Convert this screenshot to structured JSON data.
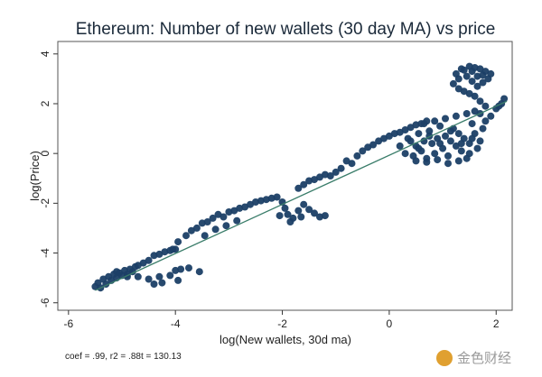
{
  "chart_data": {
    "type": "scatter",
    "title": "Ethereum: Number of new wallets (30 day MA) vs price",
    "xlabel": "log(New wallets, 30d ma)",
    "ylabel": "log(Price)",
    "xlim": [
      -6.2,
      2.3
    ],
    "ylim": [
      -6.3,
      4.5
    ],
    "xticks": [
      -6,
      -4,
      -2,
      0,
      2
    ],
    "yticks": [
      -6,
      -4,
      -2,
      0,
      2,
      4
    ],
    "xtick_labels": [
      "-6",
      "-4",
      "-2",
      "0",
      "2"
    ],
    "ytick_labels": [
      "-6",
      "-4",
      "-2",
      "0",
      "2",
      "4"
    ],
    "grid": false,
    "legend": "none",
    "point_color": "#1b3f66",
    "fit_line_color": "#3a7d6a",
    "fit_line": {
      "x": [
        -5.5,
        2.2
      ],
      "y": [
        -5.5,
        2.1
      ]
    },
    "annotation": "coef = .99, r2 = .88t = 130.13",
    "points": [
      [
        -5.5,
        -5.35
      ],
      [
        -5.45,
        -5.2
      ],
      [
        -5.4,
        -5.4
      ],
      [
        -5.35,
        -5.05
      ],
      [
        -5.3,
        -5.25
      ],
      [
        -5.25,
        -4.95
      ],
      [
        -5.2,
        -5.1
      ],
      [
        -5.15,
        -4.85
      ],
      [
        -5.1,
        -5.0
      ],
      [
        -5.05,
        -4.8
      ],
      [
        -5.0,
        -4.9
      ],
      [
        -4.95,
        -4.7
      ],
      [
        -4.9,
        -4.85
      ],
      [
        -4.85,
        -4.65
      ],
      [
        -4.8,
        -4.75
      ],
      [
        -4.75,
        -4.55
      ],
      [
        -4.7,
        -4.5
      ],
      [
        -4.6,
        -4.4
      ],
      [
        -4.5,
        -4.3
      ],
      [
        -4.4,
        -4.1
      ],
      [
        -4.3,
        -4.05
      ],
      [
        -4.2,
        -3.95
      ],
      [
        -4.1,
        -3.9
      ],
      [
        -4.0,
        -3.85
      ],
      [
        -5.1,
        -4.75
      ],
      [
        -4.9,
        -4.95
      ],
      [
        -4.7,
        -4.95
      ],
      [
        -4.5,
        -5.05
      ],
      [
        -4.3,
        -4.95
      ],
      [
        -4.25,
        -5.2
      ],
      [
        -4.1,
        -4.9
      ],
      [
        -4.0,
        -4.7
      ],
      [
        -3.9,
        -4.65
      ],
      [
        -3.75,
        -4.6
      ],
      [
        -3.55,
        -4.75
      ],
      [
        -4.4,
        -5.25
      ],
      [
        -3.95,
        -5.1
      ],
      [
        -4.05,
        -3.85
      ],
      [
        -3.95,
        -3.55
      ],
      [
        -3.8,
        -3.3
      ],
      [
        -3.7,
        -3.1
      ],
      [
        -3.6,
        -3.0
      ],
      [
        -3.5,
        -2.8
      ],
      [
        -3.4,
        -2.75
      ],
      [
        -3.3,
        -2.6
      ],
      [
        -3.2,
        -2.45
      ],
      [
        -3.1,
        -2.55
      ],
      [
        -3.0,
        -2.35
      ],
      [
        -2.9,
        -2.3
      ],
      [
        -2.8,
        -2.2
      ],
      [
        -2.7,
        -2.15
      ],
      [
        -2.6,
        -2.05
      ],
      [
        -2.5,
        -1.95
      ],
      [
        -2.4,
        -1.9
      ],
      [
        -2.3,
        -1.85
      ],
      [
        -2.2,
        -1.8
      ],
      [
        -2.1,
        -1.75
      ],
      [
        -3.45,
        -3.3
      ],
      [
        -3.25,
        -3.05
      ],
      [
        -3.05,
        -2.9
      ],
      [
        -2.85,
        -2.7
      ],
      [
        -2.0,
        -1.95
      ],
      [
        -1.95,
        -2.2
      ],
      [
        -1.9,
        -2.45
      ],
      [
        -1.8,
        -2.6
      ],
      [
        -1.7,
        -2.3
      ],
      [
        -1.6,
        -2.05
      ],
      [
        -1.5,
        -2.25
      ],
      [
        -1.4,
        -2.4
      ],
      [
        -1.3,
        -2.55
      ],
      [
        -1.2,
        -2.5
      ],
      [
        -2.05,
        -2.5
      ],
      [
        -1.85,
        -2.75
      ],
      [
        -1.65,
        -2.55
      ],
      [
        -1.7,
        -1.4
      ],
      [
        -1.6,
        -1.25
      ],
      [
        -1.5,
        -1.1
      ],
      [
        -1.4,
        -1.05
      ],
      [
        -1.3,
        -0.95
      ],
      [
        -1.2,
        -0.85
      ],
      [
        -1.1,
        -0.9
      ],
      [
        -1.0,
        -0.75
      ],
      [
        -0.9,
        -0.6
      ],
      [
        -0.8,
        -0.3
      ],
      [
        -0.7,
        -0.4
      ],
      [
        -0.6,
        -0.1
      ],
      [
        -0.5,
        0.1
      ],
      [
        -0.4,
        0.25
      ],
      [
        -0.3,
        0.35
      ],
      [
        -0.2,
        0.5
      ],
      [
        -0.1,
        0.6
      ],
      [
        0.0,
        0.7
      ],
      [
        0.1,
        0.8
      ],
      [
        0.2,
        0.85
      ],
      [
        0.3,
        0.95
      ],
      [
        0.4,
        1.05
      ],
      [
        0.5,
        1.15
      ],
      [
        0.6,
        1.2
      ],
      [
        0.7,
        1.3
      ],
      [
        0.2,
        0.3
      ],
      [
        0.3,
        0.0
      ],
      [
        0.4,
        0.5
      ],
      [
        0.45,
        -0.1
      ],
      [
        0.5,
        0.3
      ],
      [
        0.55,
        0.8
      ],
      [
        0.6,
        0.1
      ],
      [
        0.65,
        0.5
      ],
      [
        0.7,
        -0.2
      ],
      [
        0.75,
        0.9
      ],
      [
        0.8,
        0.4
      ],
      [
        0.85,
        0.0
      ],
      [
        0.9,
        0.6
      ],
      [
        0.95,
        1.1
      ],
      [
        1.0,
        0.2
      ],
      [
        1.05,
        0.7
      ],
      [
        1.1,
        -0.1
      ],
      [
        1.15,
        0.5
      ],
      [
        1.2,
        1.0
      ],
      [
        1.25,
        0.3
      ],
      [
        1.3,
        0.8
      ],
      [
        1.35,
        0.1
      ],
      [
        1.4,
        0.6
      ],
      [
        1.45,
        -0.2
      ],
      [
        1.5,
        0.4
      ],
      [
        1.55,
        1.2
      ],
      [
        1.6,
        0.8
      ],
      [
        1.65,
        0.2
      ],
      [
        1.7,
        0.5
      ],
      [
        1.75,
        1.0
      ],
      [
        0.35,
        0.6
      ],
      [
        0.55,
        0.2
      ],
      [
        0.75,
        0.7
      ],
      [
        0.95,
        0.4
      ],
      [
        1.15,
        0.9
      ],
      [
        1.35,
        0.4
      ],
      [
        1.55,
        0.6
      ],
      [
        0.65,
        1.2
      ],
      [
        0.85,
        1.3
      ],
      [
        1.05,
        1.4
      ],
      [
        1.25,
        1.5
      ],
      [
        1.45,
        1.6
      ],
      [
        0.5,
        -0.3
      ],
      [
        0.7,
        -0.35
      ],
      [
        0.9,
        -0.25
      ],
      [
        1.1,
        -0.4
      ],
      [
        1.3,
        -0.3
      ],
      [
        1.5,
        0.0
      ],
      [
        1.8,
        1.3
      ],
      [
        1.9,
        1.5
      ],
      [
        2.0,
        1.8
      ],
      [
        2.05,
        1.9
      ],
      [
        2.1,
        2.0
      ],
      [
        2.15,
        2.2
      ],
      [
        1.7,
        1.6
      ],
      [
        1.8,
        1.9
      ],
      [
        1.6,
        1.7
      ],
      [
        1.7,
        2.1
      ],
      [
        1.6,
        2.3
      ],
      [
        1.5,
        2.4
      ],
      [
        1.4,
        2.5
      ],
      [
        1.3,
        2.6
      ],
      [
        1.2,
        2.8
      ],
      [
        1.3,
        3.0
      ],
      [
        1.25,
        3.2
      ],
      [
        1.35,
        3.4
      ],
      [
        1.5,
        3.5
      ],
      [
        1.6,
        3.45
      ],
      [
        1.7,
        3.4
      ],
      [
        1.8,
        3.3
      ],
      [
        1.9,
        3.2
      ],
      [
        1.85,
        3.0
      ],
      [
        1.75,
        2.85
      ],
      [
        1.65,
        2.7
      ],
      [
        1.55,
        2.9
      ],
      [
        1.45,
        3.1
      ],
      [
        1.4,
        3.35
      ],
      [
        1.55,
        3.3
      ],
      [
        1.65,
        3.1
      ],
      [
        1.75,
        3.15
      ]
    ]
  },
  "watermark": "金色财经"
}
